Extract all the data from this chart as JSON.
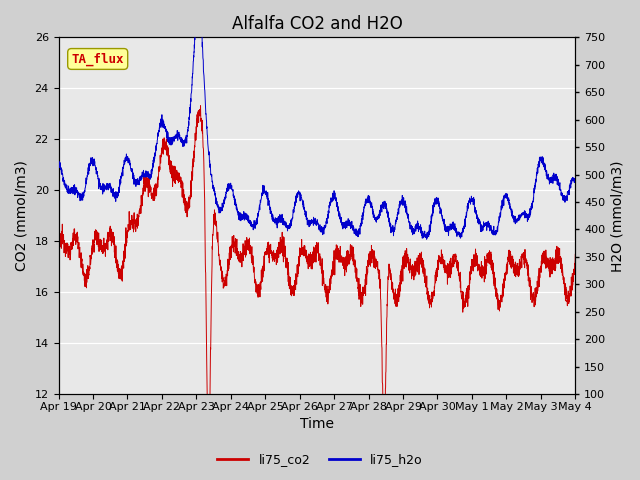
{
  "title": "Alfalfa CO2 and H2O",
  "xlabel": "Time",
  "ylabel_left": "CO2 (mmol/m3)",
  "ylabel_right": "H2O (mmol/m3)",
  "ylim_left": [
    12,
    26
  ],
  "ylim_right": [
    100,
    750
  ],
  "yticks_left": [
    12,
    14,
    16,
    18,
    20,
    22,
    24,
    26
  ],
  "yticks_right": [
    100,
    150,
    200,
    250,
    300,
    350,
    400,
    450,
    500,
    550,
    600,
    650,
    700,
    750
  ],
  "color_co2": "#cc0000",
  "color_h2o": "#0000cc",
  "fig_bg_color": "#d0d0d0",
  "plot_bg_color": "#e8e8e8",
  "legend_labels": [
    "li75_co2",
    "li75_h2o"
  ],
  "annotation_text": "TA_flux",
  "annotation_color": "#cc0000",
  "annotation_bg": "#ffff99",
  "annotation_edge": "#999900",
  "grid_color": "#ffffff",
  "title_fontsize": 12,
  "label_fontsize": 10,
  "tick_fontsize": 8,
  "n_points": 3000,
  "xtick_labels": [
    "Apr 19",
    "Apr 20",
    "Apr 21",
    "Apr 22",
    "Apr 23",
    "Apr 24",
    "Apr 25",
    "Apr 26",
    "Apr 27",
    "Apr 28",
    "Apr 29",
    "Apr 30",
    "May 1",
    "May 2",
    "May 3",
    "May 4"
  ]
}
